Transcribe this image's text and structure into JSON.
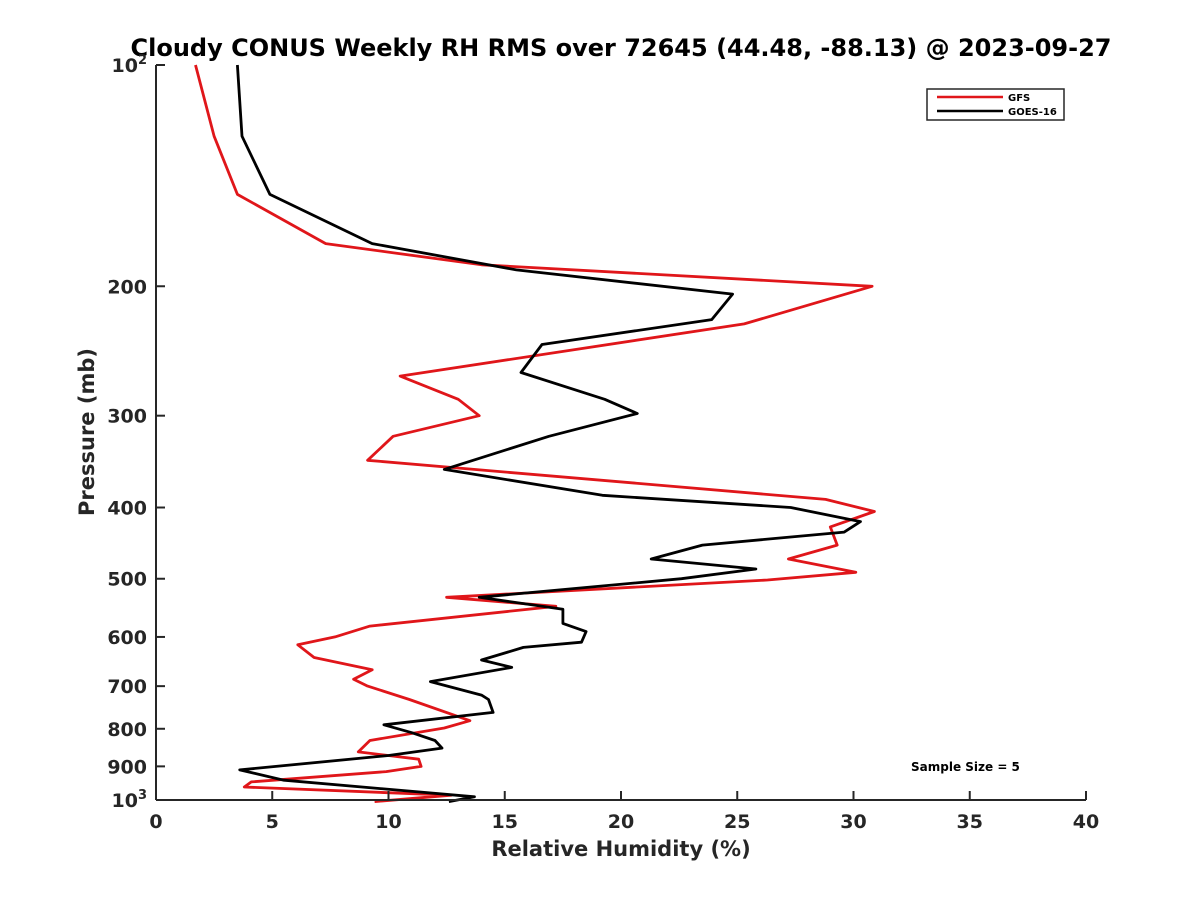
{
  "chart_data": {
    "type": "line",
    "title": "Cloudy CONUS Weekly RH RMS over 72645 (44.48, -88.13) @ 2023-09-27",
    "xlabel": "Relative Humidity (%)",
    "ylabel": "Pressure (mb)",
    "xlim": [
      0,
      40
    ],
    "ylim": [
      100,
      1000
    ],
    "y_scale": "log",
    "y_reversed": true,
    "x_ticks": [
      0,
      5,
      10,
      15,
      20,
      25,
      30,
      35,
      40
    ],
    "y_ticks": [
      {
        "value": 100,
        "label": "10",
        "sup": "2"
      },
      {
        "value": 200,
        "label": "200",
        "sup": ""
      },
      {
        "value": 300,
        "label": "300",
        "sup": ""
      },
      {
        "value": 400,
        "label": "400",
        "sup": ""
      },
      {
        "value": 500,
        "label": "500",
        "sup": ""
      },
      {
        "value": 600,
        "label": "600",
        "sup": ""
      },
      {
        "value": 700,
        "label": "700",
        "sup": ""
      },
      {
        "value": 800,
        "label": "800",
        "sup": ""
      },
      {
        "value": 900,
        "label": "900",
        "sup": ""
      },
      {
        "value": 1000,
        "label": "10",
        "sup": "3"
      }
    ],
    "grid": false,
    "legend_position": "top-right",
    "series": [
      {
        "name": "GFS",
        "color": "#e0161a",
        "points": [
          [
            1.7,
            100
          ],
          [
            2.5,
            125
          ],
          [
            3.5,
            150
          ],
          [
            7.3,
            175
          ],
          [
            14.0,
            187
          ],
          [
            30.8,
            200
          ],
          [
            25.3,
            225
          ],
          [
            10.5,
            265
          ],
          [
            13.0,
            285
          ],
          [
            13.9,
            300
          ],
          [
            10.2,
            320
          ],
          [
            9.1,
            345
          ],
          [
            28.8,
            390
          ],
          [
            30.9,
            405
          ],
          [
            29.0,
            425
          ],
          [
            29.3,
            450
          ],
          [
            27.2,
            470
          ],
          [
            30.1,
            490
          ],
          [
            26.3,
            502
          ],
          [
            12.5,
            530
          ],
          [
            17.2,
            545
          ],
          [
            9.2,
            580
          ],
          [
            7.7,
            600
          ],
          [
            6.1,
            615
          ],
          [
            6.8,
            640
          ],
          [
            9.3,
            665
          ],
          [
            8.5,
            685
          ],
          [
            9.1,
            700
          ],
          [
            10.9,
            730
          ],
          [
            13.5,
            780
          ],
          [
            12.4,
            798
          ],
          [
            9.2,
            830
          ],
          [
            8.7,
            860
          ],
          [
            11.3,
            880
          ],
          [
            11.4,
            900
          ],
          [
            9.9,
            915
          ],
          [
            4.1,
            945
          ],
          [
            3.8,
            960
          ],
          [
            12.7,
            985
          ],
          [
            9.4,
            1005
          ]
        ]
      },
      {
        "name": "GOES-16",
        "color": "#000000",
        "points": [
          [
            3.5,
            100
          ],
          [
            3.7,
            125
          ],
          [
            4.9,
            150
          ],
          [
            9.3,
            175
          ],
          [
            15.5,
            190
          ],
          [
            24.8,
            205
          ],
          [
            23.9,
            222
          ],
          [
            16.6,
            240
          ],
          [
            15.7,
            262
          ],
          [
            19.3,
            285
          ],
          [
            20.7,
            298
          ],
          [
            16.9,
            320
          ],
          [
            12.4,
            355
          ],
          [
            19.2,
            385
          ],
          [
            27.3,
            400
          ],
          [
            30.3,
            418
          ],
          [
            29.6,
            432
          ],
          [
            23.5,
            450
          ],
          [
            21.3,
            470
          ],
          [
            25.8,
            485
          ],
          [
            22.6,
            500
          ],
          [
            13.9,
            530
          ],
          [
            17.5,
            550
          ],
          [
            17.5,
            575
          ],
          [
            18.5,
            590
          ],
          [
            18.3,
            610
          ],
          [
            15.8,
            620
          ],
          [
            14.0,
            645
          ],
          [
            15.3,
            660
          ],
          [
            11.8,
            690
          ],
          [
            14.0,
            720
          ],
          [
            14.3,
            730
          ],
          [
            14.5,
            760
          ],
          [
            9.8,
            790
          ],
          [
            11.0,
            810
          ],
          [
            12.0,
            830
          ],
          [
            12.3,
            850
          ],
          [
            10.0,
            870
          ],
          [
            3.6,
            910
          ],
          [
            5.5,
            940
          ],
          [
            13.7,
            990
          ],
          [
            12.6,
            1005
          ]
        ]
      }
    ],
    "annotation": "Sample Size = 5"
  }
}
